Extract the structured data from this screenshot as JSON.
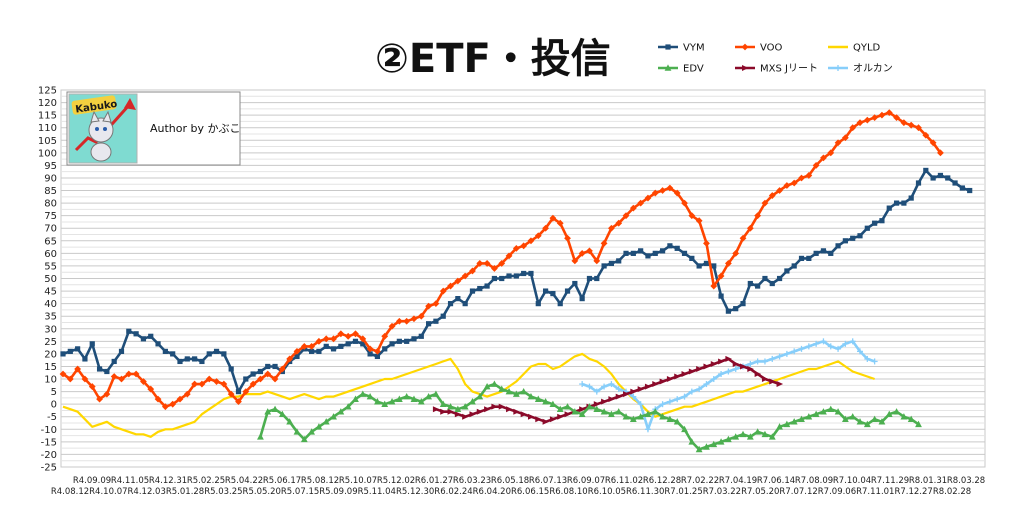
{
  "chart_data": {
    "type": "line",
    "title": "②ETF・投信",
    "author": "Author by かぶこ",
    "logo_text": "Kabuko",
    "ylim": [
      -25,
      125
    ],
    "y_ticks": [
      125,
      120,
      115,
      110,
      105,
      100,
      95,
      90,
      85,
      80,
      75,
      70,
      65,
      60,
      55,
      50,
      45,
      40,
      35,
      30,
      25,
      20,
      15,
      10,
      5,
      0,
      -5,
      -10,
      -15,
      -20,
      -25
    ],
    "grid": "horizontal",
    "legend_position": "top-right",
    "x_labels_top": [
      "R4.09.09",
      "R4.11.05",
      "R4.12.31",
      "R5.02.25",
      "R5.04.22",
      "R5.06.17",
      "R5.08.12",
      "R5.10.07",
      "R5.12.02",
      "R6.01.27",
      "R6.03.23",
      "R6.05.18",
      "R6.07.13",
      "R6.09.07",
      "R6.11.02",
      "R6.12.28",
      "R7.02.22",
      "R7.04.19",
      "R7.06.14",
      "R7.08.09",
      "R7.10.04",
      "R7.11.29",
      "R8.01.31",
      "R8.03.28"
    ],
    "x_labels_bottom": [
      "R4.08.12",
      "R4.10.07",
      "R4.12.03",
      "R5.01.28",
      "R5.03.25",
      "R5.05.20",
      "R5.07.15",
      "R5.09.09",
      "R5.11.04",
      "R5.12.30",
      "R6.02.24",
      "R6.04.20",
      "R6.06.15",
      "R6.08.10",
      "R6.10.05",
      "R6.11.30",
      "R7.01.25",
      "R7.03.22",
      "R7.05.20",
      "R7.07.12",
      "R7.09.06",
      "R7.11.01",
      "R7.12.27",
      "R8.02.28"
    ],
    "series": [
      {
        "name": "VYM",
        "color": "#1f4e79",
        "marker": "square",
        "start": 0,
        "points": [
          20,
          21,
          22,
          18,
          24,
          14,
          13,
          17,
          21,
          29,
          28,
          26,
          27,
          24,
          21,
          20,
          17,
          18,
          18,
          17,
          20,
          21,
          20,
          14,
          5,
          10,
          12,
          13,
          15,
          15,
          13,
          17,
          19,
          22,
          21,
          21,
          23,
          22,
          23,
          24,
          25,
          24,
          20,
          19,
          22,
          24,
          25,
          25,
          26,
          27,
          32,
          33,
          35,
          40,
          42,
          40,
          45,
          46,
          47,
          50,
          50,
          51,
          51,
          52,
          52,
          40,
          45,
          44,
          40,
          45,
          48,
          42,
          50,
          50,
          55,
          56,
          57,
          60,
          60,
          61,
          59,
          60,
          61,
          63,
          62,
          60,
          58,
          55,
          56,
          55,
          43,
          37,
          38,
          40,
          48,
          47,
          50,
          48,
          50,
          53,
          55,
          58,
          58,
          60,
          61,
          60,
          63,
          65,
          66,
          67,
          70,
          72,
          73,
          78,
          80,
          80,
          82,
          88,
          93,
          90,
          91,
          90,
          88,
          86,
          85
        ]
      },
      {
        "name": "VOO",
        "color": "#ff4500",
        "marker": "diamond",
        "start": 0,
        "points": [
          12,
          10,
          14,
          10,
          7,
          2,
          4,
          11,
          10,
          12,
          12,
          9,
          6,
          2,
          -1,
          0,
          2,
          4,
          8,
          8,
          10,
          9,
          8,
          4,
          1,
          5,
          8,
          10,
          12,
          10,
          14,
          18,
          21,
          23,
          23,
          25,
          26,
          26,
          28,
          27,
          28,
          26,
          22,
          21,
          27,
          31,
          33,
          33,
          34,
          35,
          39,
          40,
          45,
          47,
          49,
          51,
          53,
          56,
          56,
          54,
          56,
          59,
          62,
          63,
          65,
          67,
          70,
          74,
          72,
          66,
          57,
          60,
          61,
          57,
          64,
          70,
          72,
          75,
          78,
          80,
          82,
          84,
          85,
          86,
          84,
          80,
          75,
          73,
          64,
          47,
          51,
          56,
          60,
          66,
          70,
          75,
          80,
          83,
          85,
          87,
          88,
          90,
          91,
          95,
          98,
          100,
          104,
          106,
          110,
          112,
          113,
          114,
          115,
          116,
          114,
          112,
          111,
          110,
          107,
          104,
          100
        ]
      },
      {
        "name": "QYLD",
        "color": "#ffd700",
        "marker": "none",
        "start": 0,
        "points": [
          -1,
          -2,
          -3,
          -6,
          -9,
          -8,
          -7,
          -9,
          -10,
          -11,
          -12,
          -12,
          -13,
          -11,
          -10,
          -10,
          -9,
          -8,
          -7,
          -4,
          -2,
          0,
          2,
          3,
          3,
          4,
          4,
          4,
          5,
          4,
          3,
          2,
          3,
          4,
          3,
          2,
          3,
          3,
          4,
          5,
          6,
          7,
          8,
          9,
          10,
          10,
          11,
          12,
          13,
          14,
          15,
          16,
          17,
          18,
          14,
          8,
          5,
          4,
          3,
          4,
          5,
          7,
          9,
          12,
          15,
          16,
          16,
          14,
          15,
          17,
          19,
          20,
          18,
          17,
          15,
          12,
          8,
          5,
          2,
          0,
          -3,
          -5,
          -4,
          -3,
          -2,
          -1,
          -1,
          0,
          1,
          2,
          3,
          4,
          5,
          5,
          6,
          7,
          8,
          9,
          10,
          11,
          12,
          13,
          14,
          14,
          15,
          16,
          17,
          15,
          13,
          12,
          11,
          10
        ]
      },
      {
        "name": "EDV",
        "color": "#4caf50",
        "marker": "triangle",
        "start": 27,
        "points": [
          -13,
          -3,
          -2,
          -4,
          -7,
          -11,
          -14,
          -11,
          -9,
          -7,
          -5,
          -3,
          -1,
          2,
          4,
          3,
          1,
          0,
          1,
          2,
          3,
          2,
          1,
          3,
          4,
          0,
          -1,
          -2,
          -1,
          1,
          3,
          7,
          8,
          6,
          5,
          4,
          5,
          3,
          2,
          1,
          0,
          -2,
          -1,
          -3,
          -4,
          -1,
          -2,
          -3,
          -4,
          -3,
          -5,
          -6,
          -5,
          -4,
          -3,
          -5,
          -6,
          -7,
          -10,
          -15,
          -18,
          -17,
          -16,
          -15,
          -14,
          -13,
          -12,
          -13,
          -11,
          -12,
          -13,
          -9,
          -8,
          -7,
          -6,
          -5,
          -4,
          -3,
          -2,
          -3,
          -6,
          -5,
          -7,
          -8,
          -6,
          -7,
          -4,
          -3,
          -5,
          -6,
          -8
        ]
      },
      {
        "name": "MXS Jリート",
        "color": "#8b0a2a",
        "marker": "arrow",
        "start": 51,
        "points": [
          -2,
          -3,
          -3,
          -4,
          -5,
          -4,
          -3,
          -2,
          -1,
          -1,
          -2,
          -3,
          -4,
          -5,
          -6,
          -7,
          -6,
          -5,
          -4,
          -3,
          -2,
          -1,
          0,
          1,
          2,
          3,
          4,
          5,
          6,
          7,
          8,
          9,
          10,
          11,
          12,
          13,
          14,
          15,
          16,
          17,
          18,
          16,
          15,
          14,
          12,
          10,
          9,
          8
        ]
      },
      {
        "name": "オルカン",
        "color": "#87cefa",
        "marker": "cross",
        "start": 71,
        "points": [
          8,
          7,
          5,
          7,
          8,
          6,
          5,
          3,
          0,
          -10,
          -2,
          0,
          1,
          2,
          3,
          5,
          6,
          8,
          10,
          12,
          13,
          14,
          15,
          16,
          17,
          17,
          18,
          19,
          20,
          21,
          22,
          23,
          24,
          25,
          23,
          22,
          24,
          25,
          21,
          18,
          17
        ]
      }
    ]
  }
}
